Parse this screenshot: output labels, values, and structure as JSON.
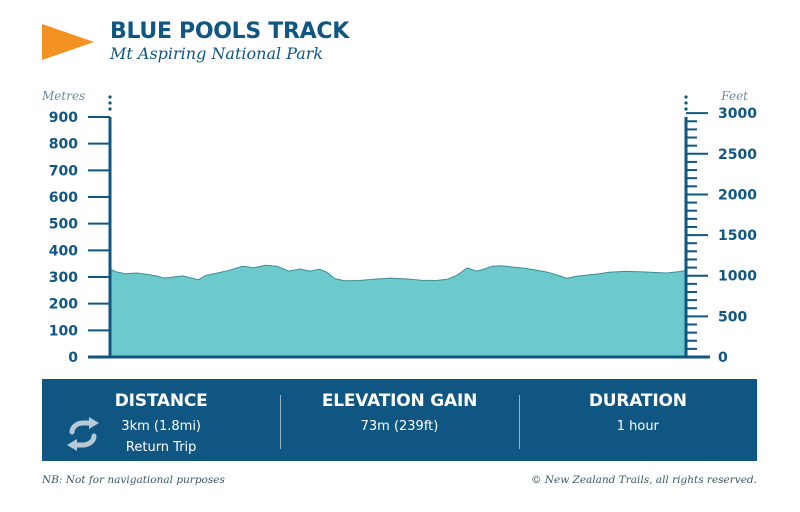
{
  "header": {
    "title": "BLUE POOLS TRACK",
    "subtitle": "Mt Aspiring National Park",
    "logo": "orange-pennant-flag"
  },
  "colors": {
    "navy": "#0f5683",
    "area_fill": "#6dcacc",
    "area_stroke": "#3f8c99",
    "logo_orange": "#f39123"
  },
  "chart_data": {
    "type": "area",
    "left_axis": {
      "label": "Metres",
      "ticks": [
        0,
        100,
        200,
        300,
        400,
        500,
        600,
        700,
        800,
        900
      ],
      "range": [
        0,
        900
      ]
    },
    "right_axis": {
      "label": "Feet",
      "ticks": [
        0,
        500,
        1000,
        1500,
        2000,
        2500,
        3000
      ],
      "range": [
        0,
        3000
      ]
    },
    "distance_km": 3,
    "profile": [
      [
        0.0,
        330
      ],
      [
        0.03,
        320
      ],
      [
        0.08,
        312
      ],
      [
        0.14,
        315
      ],
      [
        0.2,
        309
      ],
      [
        0.25,
        303
      ],
      [
        0.28,
        296
      ],
      [
        0.33,
        300
      ],
      [
        0.38,
        304
      ],
      [
        0.42,
        297
      ],
      [
        0.46,
        290
      ],
      [
        0.5,
        306
      ],
      [
        0.56,
        315
      ],
      [
        0.62,
        325
      ],
      [
        0.69,
        340
      ],
      [
        0.75,
        335
      ],
      [
        0.81,
        344
      ],
      [
        0.87,
        340
      ],
      [
        0.93,
        322
      ],
      [
        0.99,
        330
      ],
      [
        1.04,
        322
      ],
      [
        1.09,
        329
      ],
      [
        1.13,
        318
      ],
      [
        1.17,
        294
      ],
      [
        1.22,
        286
      ],
      [
        1.3,
        287
      ],
      [
        1.38,
        292
      ],
      [
        1.46,
        296
      ],
      [
        1.54,
        293
      ],
      [
        1.62,
        288
      ],
      [
        1.7,
        287
      ],
      [
        1.76,
        292
      ],
      [
        1.81,
        308
      ],
      [
        1.86,
        334
      ],
      [
        1.91,
        322
      ],
      [
        1.95,
        330
      ],
      [
        1.99,
        340
      ],
      [
        2.04,
        342
      ],
      [
        2.1,
        337
      ],
      [
        2.16,
        333
      ],
      [
        2.22,
        326
      ],
      [
        2.28,
        318
      ],
      [
        2.33,
        307
      ],
      [
        2.38,
        295
      ],
      [
        2.43,
        303
      ],
      [
        2.48,
        307
      ],
      [
        2.53,
        310
      ],
      [
        2.6,
        318
      ],
      [
        2.68,
        321
      ],
      [
        2.76,
        320
      ],
      [
        2.84,
        317
      ],
      [
        2.9,
        315
      ],
      [
        2.96,
        320
      ],
      [
        3.0,
        325
      ]
    ]
  },
  "stats": {
    "distance": {
      "heading": "DISTANCE",
      "value": "3km (1.8mi)",
      "sub": "Return Trip",
      "icon": "loop-arrows-icon"
    },
    "elevation": {
      "heading": "ELEVATION GAIN",
      "value": "73m (239ft)"
    },
    "duration": {
      "heading": "DURATION",
      "value": "1 hour"
    }
  },
  "footer": {
    "note": "NB: Not for navigational purposes",
    "copyright": "© New Zealand Trails, all rights reserved."
  }
}
